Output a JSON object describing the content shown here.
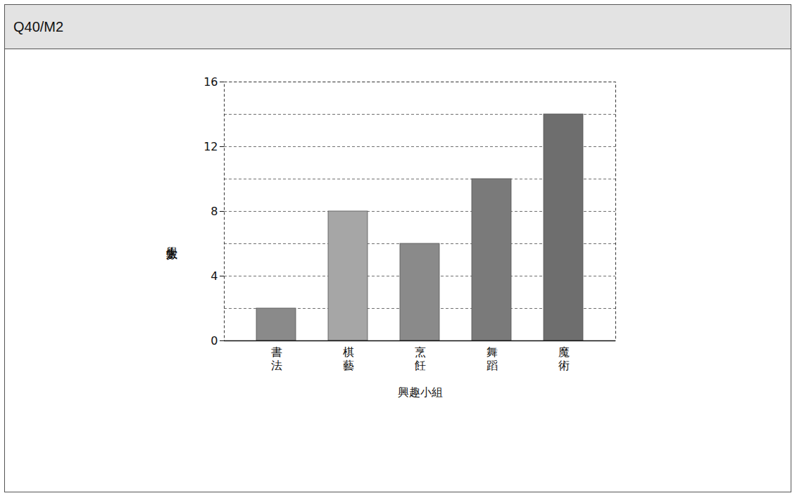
{
  "header": "Q40/M2",
  "chart_data": {
    "type": "bar",
    "xlabel": "興趣小組",
    "ylabel": "學生人數",
    "categories": [
      "書法",
      "棋藝",
      "烹飪",
      "舞蹈",
      "魔術"
    ],
    "values": [
      2,
      8,
      6,
      10,
      14
    ],
    "colors": [
      "#8a8a8a",
      "#a6a6a6",
      "#8a8a8a",
      "#7a7a7a",
      "#6e6e6e"
    ],
    "ylim": [
      0,
      16
    ],
    "yticks": [
      0,
      4,
      8,
      12,
      16
    ],
    "grid": true
  }
}
